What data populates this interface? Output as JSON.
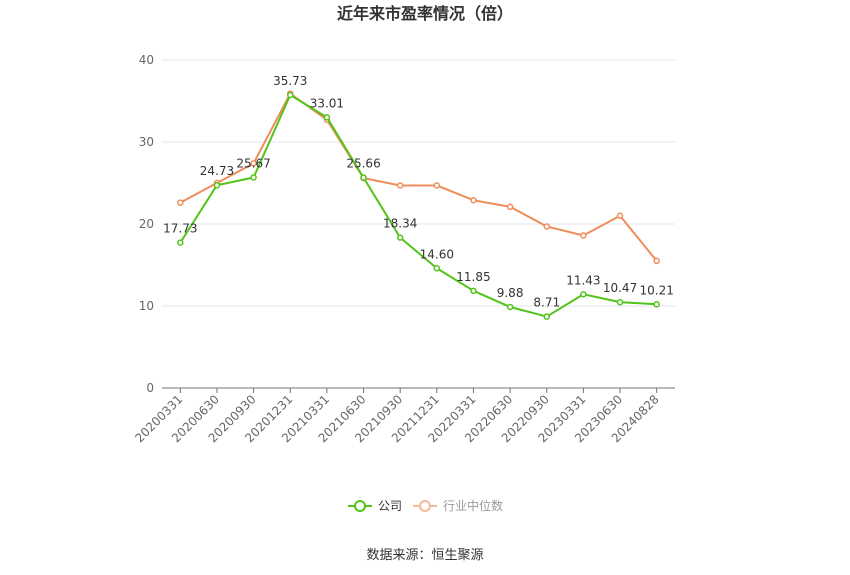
{
  "chart_data": {
    "type": "line",
    "title": "近年来市盈率情况（倍）",
    "categories": [
      "20200331",
      "20200630",
      "20200930",
      "20201231",
      "20210331",
      "20210630",
      "20210930",
      "20211231",
      "20220331",
      "20220630",
      "20220930",
      "20230331",
      "20230630",
      "20240828"
    ],
    "ylim": [
      0,
      40
    ],
    "yticks": [
      0,
      10,
      20,
      30,
      40
    ],
    "grid": true,
    "legend_position": "bottom",
    "series": [
      {
        "name": "公司",
        "color": "#52c41a",
        "values": [
          17.73,
          24.73,
          25.67,
          35.73,
          33.01,
          25.66,
          18.34,
          14.6,
          11.85,
          9.88,
          8.71,
          11.43,
          10.47,
          10.21
        ],
        "labels": [
          "17.73",
          "24.73",
          "25.67",
          "35.73",
          "33.01",
          "25.66",
          "18.34",
          "14.60",
          "11.85",
          "9.88",
          "8.71",
          "11.43",
          "10.47",
          "10.21"
        ]
      },
      {
        "name": "行业中位数",
        "color": "#f08c5a",
        "values": [
          22.6,
          25.0,
          27.4,
          35.9,
          32.7,
          25.6,
          24.7,
          24.7,
          22.9,
          22.1,
          19.7,
          18.6,
          21.0,
          15.5
        ]
      }
    ]
  },
  "source_text": "数据来源：恒生聚源"
}
